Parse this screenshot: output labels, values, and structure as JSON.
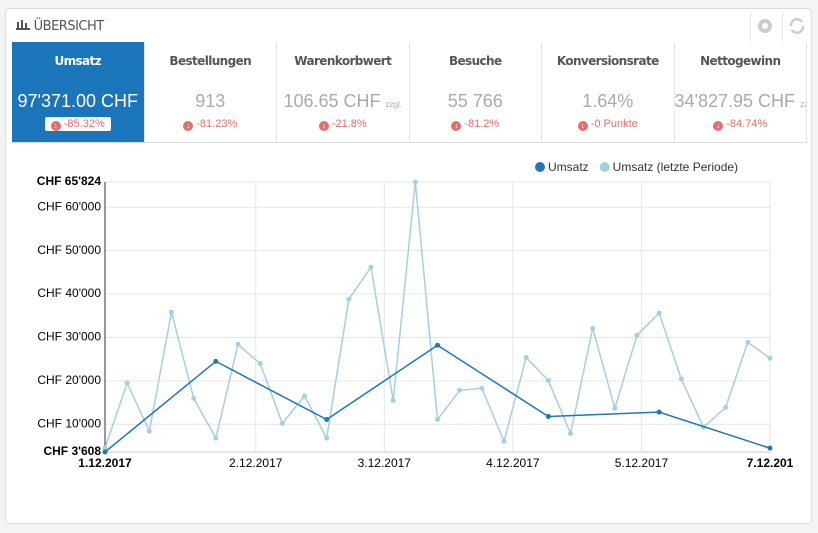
{
  "header": {
    "title": "ÜBERSICHT"
  },
  "kpis": [
    {
      "label": "Umsatz",
      "value": "97'371.00 CHF",
      "change": "-85.32%"
    },
    {
      "label": "Bestellungen",
      "value": "913",
      "change": "-81.23%"
    },
    {
      "label": "Warenkorbwert",
      "value": "106.65 CHF",
      "suffix": "zzgl.",
      "change": "-21.8%"
    },
    {
      "label": "Besuche",
      "value": "55 766",
      "change": "-81.2%"
    },
    {
      "label": "Konversionsrate",
      "value": "1.64%",
      "change": "-0 Punkte"
    },
    {
      "label": "Nettogewinn",
      "value": "34'827.95 CHF",
      "suffix": "zzgl.",
      "change": "-84.74%"
    }
  ],
  "chart_data": {
    "type": "line",
    "xlim": [
      0,
      30
    ],
    "xticks": [
      {
        "value": 0,
        "label": "1.12.2017"
      },
      {
        "value": 6.8,
        "label": "2.12.2017"
      },
      {
        "value": 12.6,
        "label": "3.12.2017"
      },
      {
        "value": 18.4,
        "label": "4.12.2017"
      },
      {
        "value": 24.2,
        "label": "5.12.2017"
      },
      {
        "value": 30,
        "label": "7.12.201"
      }
    ],
    "ylim": [
      3608,
      65824
    ],
    "yticks": [
      {
        "value": 3608,
        "label": "CHF 3'608"
      },
      {
        "value": 10000,
        "label": "CHF 10'000"
      },
      {
        "value": 20000,
        "label": "CHF 20'000"
      },
      {
        "value": 30000,
        "label": "CHF 30'000"
      },
      {
        "value": 40000,
        "label": "CHF 40'000"
      },
      {
        "value": 50000,
        "label": "CHF 50'000"
      },
      {
        "value": 60000,
        "label": "CHF 60'000"
      },
      {
        "value": 65824,
        "label": "CHF 65'824"
      }
    ],
    "grid": true,
    "legend": "top-right",
    "series": [
      {
        "name": "Umsatz",
        "color": "#1f77b4",
        "x": [
          0,
          5,
          10,
          15,
          20,
          25,
          30
        ],
        "values": [
          3608,
          24500,
          11100,
          28200,
          11800,
          12800,
          4500
        ]
      },
      {
        "name": "Umsatz (letzte Periode)",
        "color": "#a6cee3",
        "x": [
          0,
          1,
          2,
          3,
          4,
          5,
          6,
          7,
          8,
          9,
          10,
          11,
          12,
          13,
          14,
          15,
          16,
          17,
          18,
          19,
          20,
          21,
          22,
          23,
          24,
          25,
          26,
          27,
          28,
          29,
          30
        ],
        "values": [
          4500,
          19500,
          8400,
          35800,
          16000,
          6800,
          28400,
          24000,
          10200,
          16500,
          6800,
          38800,
          46200,
          15500,
          65824,
          11100,
          17800,
          18300,
          6100,
          25400,
          20100,
          7900,
          32100,
          13700,
          30500,
          35600,
          20400,
          9300,
          13900,
          28900,
          25200
        ]
      }
    ]
  }
}
